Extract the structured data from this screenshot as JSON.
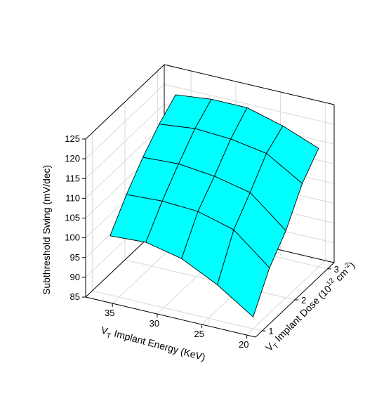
{
  "chart_data": {
    "type": "surface3d",
    "x_axis": {
      "label_prefix": "V",
      "label_sub": "T",
      "label_main": " Implant Energy (KeV)",
      "ticks": [
        "20",
        "25",
        "30",
        "35"
      ],
      "range": [
        19,
        38
      ]
    },
    "y_axis": {
      "label_prefix": "V",
      "label_sub": "T",
      "label_main": " Implant Dose (10",
      "label_sup1": "12",
      "label_mid": " cm",
      "label_sup2": "-2",
      "label_end": ")",
      "ticks": [
        "1",
        "2",
        "3"
      ],
      "range": [
        0.8,
        3.2
      ]
    },
    "z_axis": {
      "label": "Subthreshold Swing (mV/dec)",
      "ticks": [
        "85",
        "90",
        "95",
        "100",
        "105",
        "110",
        "115",
        "120",
        "125"
      ],
      "range": [
        85,
        125
      ]
    },
    "grid": true,
    "energy": [
      20,
      24,
      28,
      32,
      36
    ],
    "dose": [
      1.0,
      1.5,
      2.0,
      2.5,
      3.0
    ],
    "values": [
      [
        88,
        96.5,
        102,
        110,
        115
      ],
      [
        94,
        104,
        109.5,
        115.5,
        118.5
      ],
      [
        98.5,
        106.5,
        111.5,
        117,
        121
      ],
      [
        100.5,
        107,
        112.5,
        117.5,
        121
      ],
      [
        100,
        106.5,
        112,
        116.5,
        120
      ]
    ],
    "surface_color": "#00ffff",
    "line_color": "#000000"
  }
}
